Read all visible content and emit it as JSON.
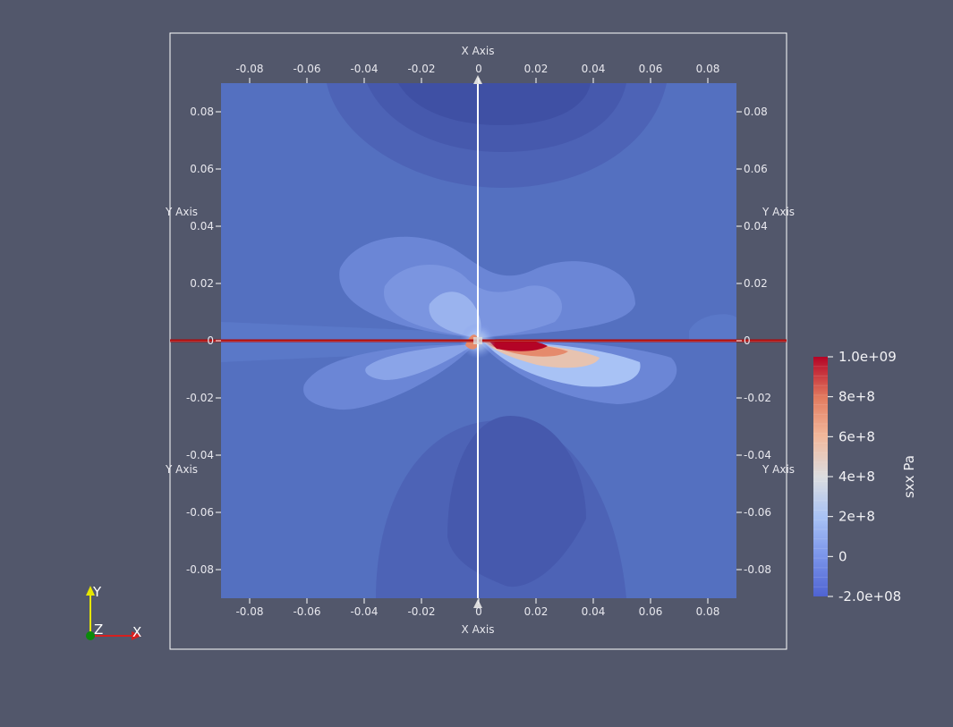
{
  "view": {
    "background": "#52576b",
    "bounding_box_color": "#ffffff"
  },
  "axes_grid": {
    "x_title": "X Axis",
    "y_title": "Y Axis",
    "ticks": [
      "-0.08",
      "-0.06",
      "-0.04",
      "-0.02",
      "0",
      "0.02",
      "0.04",
      "0.06",
      "0.08"
    ]
  },
  "color_legend": {
    "title": "sxx Pa",
    "labels": [
      "1.0e+09",
      "8e+8",
      "6e+8",
      "4e+8",
      "2e+8",
      "0",
      "-2.0e+08"
    ],
    "min": -200000000,
    "max": 1000000000,
    "colormap": "Cool to Warm",
    "low_color": "#3b4cc0",
    "high_color": "#b40426"
  },
  "orientation_axes": {
    "x": "X",
    "y": "Y",
    "z": "Z",
    "x_color": "#d62020",
    "y_color": "#e6e600",
    "z_color": "#0a8a0a"
  },
  "crack_line_color": "#b00a0a"
}
